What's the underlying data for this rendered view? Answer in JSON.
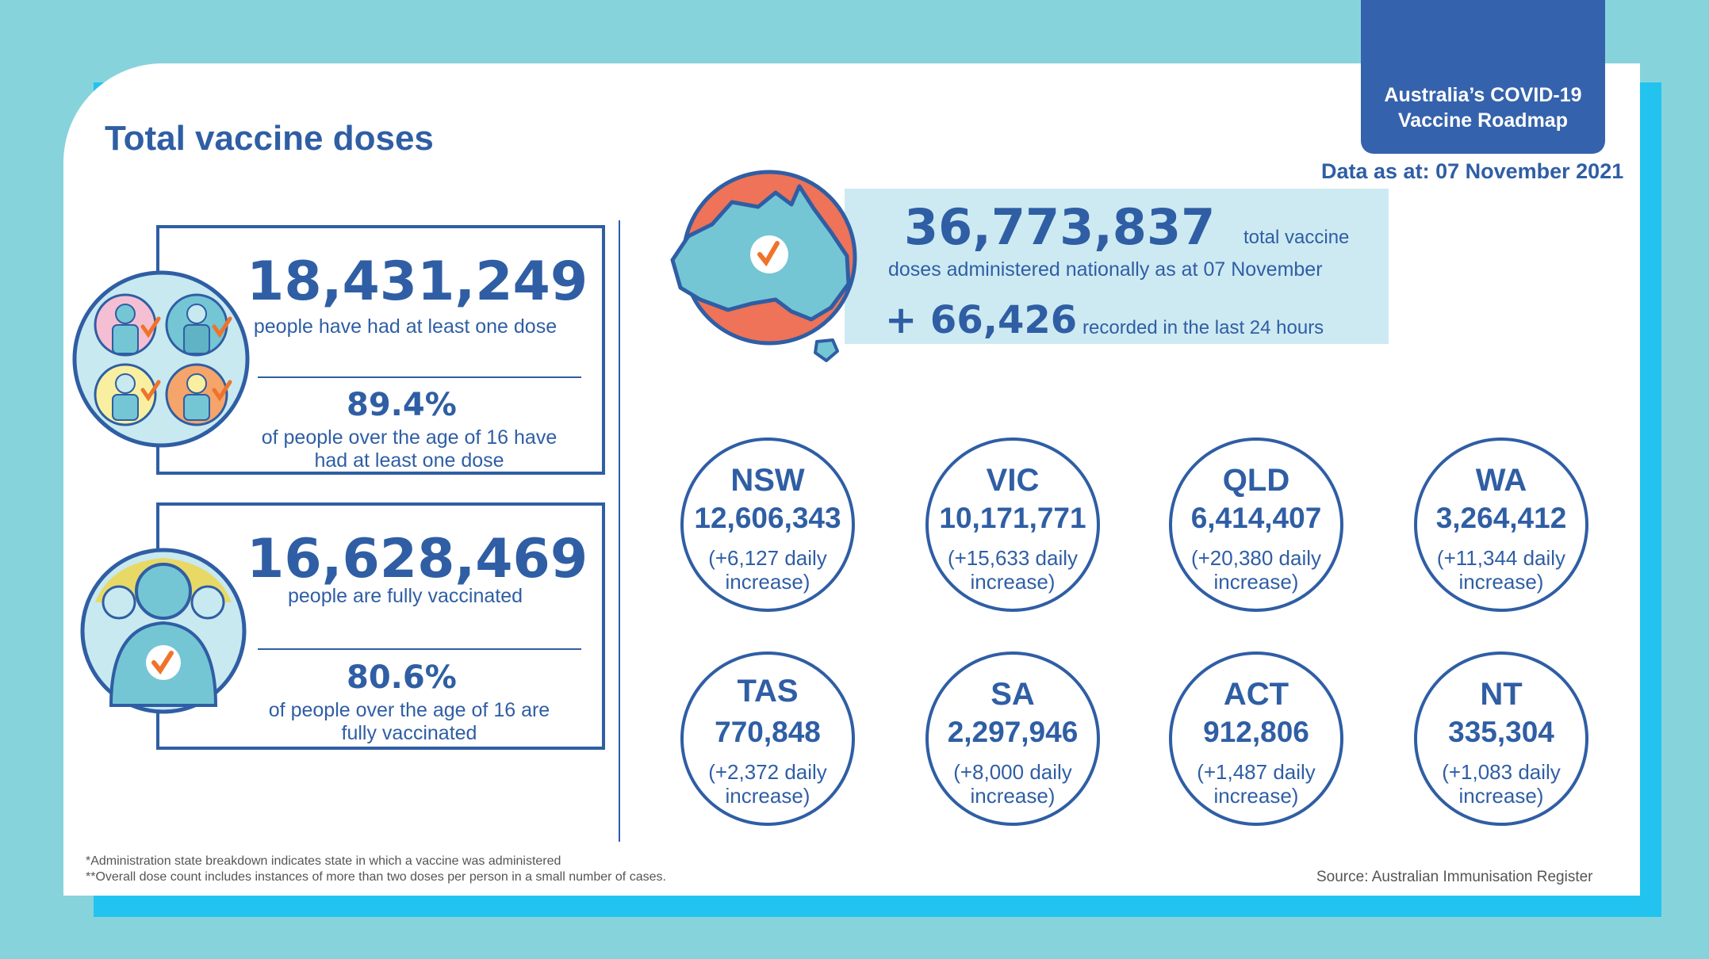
{
  "header": {
    "title": "Total vaccine doses",
    "roadmap_line1": "Australia’s COVID-19",
    "roadmap_line2": "Vaccine Roadmap",
    "date_label": "Data as at:",
    "date_value": "07 November 2021"
  },
  "first_dose": {
    "count": "18,431,249",
    "count_text": "people have had at least one dose",
    "percent": "89.4%",
    "percent_text_1": "of people over the age of 16 have",
    "percent_text_2": "had at least one dose"
  },
  "fully": {
    "count": "16,628,469",
    "count_text": "people are fully vaccinated",
    "percent": "80.6%",
    "percent_text_1": "of people over the age of 16 are",
    "percent_text_2": "fully vaccinated"
  },
  "national": {
    "total": "36,773,837",
    "total_suffix": "total vaccine",
    "total_text": "doses administered nationally as at 07 November",
    "increase": "+ 66,426",
    "increase_text": "recorded in the last 24 hours"
  },
  "states": [
    {
      "name": "NSW",
      "value": "12,606,343",
      "inc1": "(+6,127 daily",
      "inc2": "increase)"
    },
    {
      "name": "VIC",
      "value": "10,171,771",
      "inc1": "(+15,633 daily",
      "inc2": "increase)"
    },
    {
      "name": "QLD",
      "value": "6,414,407",
      "inc1": "(+20,380 daily",
      "inc2": "increase)"
    },
    {
      "name": "WA",
      "value": "3,264,412",
      "inc1": "(+11,344 daily",
      "inc2": "increase)"
    },
    {
      "name": "TAS",
      "value": "770,848",
      "inc1": "(+2,372 daily",
      "inc2": "increase)"
    },
    {
      "name": "SA",
      "value": "2,297,946",
      "inc1": "(+8,000 daily",
      "inc2": "increase)"
    },
    {
      "name": "ACT",
      "value": "912,806",
      "inc1": "(+1,487 daily",
      "inc2": "increase)"
    },
    {
      "name": "NT",
      "value": "335,304",
      "inc1": "(+1,083 daily",
      "inc2": "increase)"
    }
  ],
  "footer": {
    "note1": "*Administration state breakdown indicates state in which a vaccine was administered",
    "note2": "**Overall dose count includes instances of more than two doses per person in a small number of cases.",
    "source": "Source: Australian Immunisation Register"
  },
  "colors": {
    "brand_blue": "#2f5ea4",
    "tag_blue": "#3562ac",
    "light_panel": "#cdeaf2",
    "outer_teal": "#87d3dc",
    "cyan": "#22c4ef",
    "map_fill": "#74c6d4",
    "map_accent": "#ee7358",
    "check_orange": "#f0732b"
  },
  "icons": [
    "people-group-icon",
    "fully-vaccinated-person-icon",
    "australia-map-icon",
    "checkmark-icon"
  ]
}
